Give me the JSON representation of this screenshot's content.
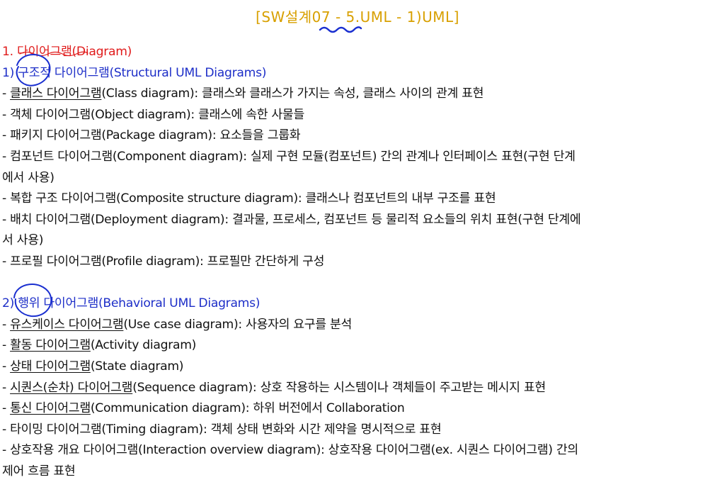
{
  "title": "[SW설계07 - 5.UML - 1)UML]",
  "section_heading": {
    "number": "1. ",
    "text": "다이어그램(Diagram)"
  },
  "structural": {
    "heading_prefix": "1) ",
    "heading_circled": "구조",
    "heading_rest": "적 다이어그램(Structural UML Diagrams)",
    "items": [
      {
        "dash": "- ",
        "name": "클래스 다이어그램",
        "desc": "(Class diagram): 클래스와 클래스가 가지는 속성, 클래스 사이의 관계 표현"
      },
      {
        "dash": "- ",
        "name": "객체 다이어그램",
        "desc": "(Object diagram): 클래스에 속한 사물들"
      },
      {
        "dash": "- ",
        "name": "패키지 다이어그램",
        "desc": "(Package diagram): 요소들을 그룹화"
      },
      {
        "dash": "- ",
        "name": "컴포넌트 다이어그램",
        "desc": "(Component diagram): 실제 구현 모듈(컴포넌트) 간의 관계나 인터페이스 표현(구현 단계",
        "cont": "에서 사용)"
      },
      {
        "dash": "- ",
        "name": "복합 구조 다이어그램",
        "desc": "(Composite structure diagram): 클래스나 컴포넌트의 내부 구조를 표현"
      },
      {
        "dash": "- ",
        "name": "배치 다이어그램",
        "desc": "(Deployment diagram): 결과물, 프로세스, 컴포넌트 등 물리적 요소들의 위치 표현(구현 단계에",
        "cont": "서 사용)"
      },
      {
        "dash": "- ",
        "name": "프로필 다이어그램",
        "desc": "(Profile diagram): 프로필만 간단하게 구성"
      }
    ]
  },
  "behavioral": {
    "heading_prefix": "2) ",
    "heading_circled": "행위",
    "heading_rest": " 다이어그램(Behavioral UML Diagrams)",
    "items": [
      {
        "dash": "- ",
        "name": "유스케이스 다이어그램",
        "desc": "(Use case diagram): 사용자의 요구를 분석"
      },
      {
        "dash": "- ",
        "name": "활동 다이어그램",
        "desc": "(Activity diagram)"
      },
      {
        "dash": "- ",
        "name": "상태 다이어그램",
        "desc": "(State diagram)"
      },
      {
        "dash": "- ",
        "name": "시퀀스(순차) 다이어그램",
        "desc": "(Sequence diagram): 상호 작용하는 시스템이나 객체들이 주고받는 메시지 표현"
      },
      {
        "dash": "- ",
        "name": "통신 다이어그램",
        "desc": "(Communication diagram): 하위 버전에서 Collaboration"
      },
      {
        "dash": "- ",
        "name": "타이밍 다이어그램",
        "desc": "(Timing diagram): 객체 상태 변화와 시간 제약을 명시적으로 표현"
      },
      {
        "dash": "- ",
        "name": "상호작용 개요 다이어그램",
        "desc": "(Interaction overview diagram): 상호작용 다이어그램(ex. 시퀀스 다이어그램) 간의",
        "cont": "제어 흐름 표현"
      }
    ]
  },
  "colors": {
    "title": "#d8a000",
    "section_heading": "#e01b1b",
    "subheading": "#1e2fc8",
    "annotation_pen": "#1a2fd0"
  }
}
